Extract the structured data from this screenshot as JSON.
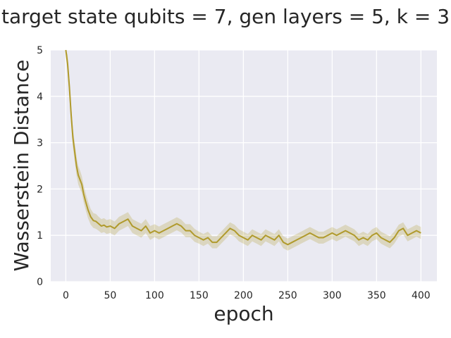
{
  "chart_data": {
    "type": "line",
    "title": "target state qubits = 7, gen layers = 5, k = 3",
    "xlabel": "epoch",
    "ylabel": "Wasserstein Distance",
    "xlim": [
      -17,
      418
    ],
    "ylim": [
      0,
      5
    ],
    "xticks": [
      0,
      50,
      100,
      150,
      200,
      250,
      300,
      350,
      400
    ],
    "yticks": [
      0,
      1,
      2,
      3,
      4,
      5
    ],
    "grid": true,
    "legend": "none",
    "colors": {
      "line": "#b09a2c",
      "band": "#b09a2c",
      "background": "#eaeaf2",
      "grid": "#ffffff"
    },
    "series": [
      {
        "x": [
          0,
          2,
          4,
          6,
          8,
          10,
          12,
          14,
          16,
          18,
          20,
          22,
          25,
          28,
          31,
          34,
          37,
          40,
          43,
          46,
          50,
          55,
          60,
          65,
          70,
          75,
          80,
          85,
          90,
          95,
          100,
          105,
          110,
          115,
          120,
          125,
          130,
          135,
          140,
          145,
          150,
          155,
          160,
          165,
          170,
          175,
          180,
          185,
          190,
          195,
          200,
          205,
          210,
          215,
          220,
          225,
          230,
          235,
          240,
          245,
          250,
          255,
          260,
          265,
          270,
          275,
          280,
          285,
          290,
          295,
          300,
          305,
          310,
          315,
          320,
          325,
          330,
          335,
          340,
          345,
          350,
          355,
          360,
          365,
          370,
          375,
          380,
          385,
          390,
          395,
          400
        ],
        "y": [
          5.0,
          4.7,
          4.2,
          3.6,
          3.1,
          2.8,
          2.5,
          2.3,
          2.2,
          2.1,
          1.9,
          1.75,
          1.55,
          1.4,
          1.32,
          1.3,
          1.25,
          1.2,
          1.22,
          1.18,
          1.2,
          1.15,
          1.25,
          1.3,
          1.35,
          1.2,
          1.15,
          1.1,
          1.2,
          1.05,
          1.1,
          1.05,
          1.1,
          1.15,
          1.2,
          1.25,
          1.2,
          1.1,
          1.1,
          1.0,
          0.95,
          0.9,
          0.95,
          0.85,
          0.85,
          0.95,
          1.05,
          1.15,
          1.1,
          1.0,
          0.95,
          0.9,
          1.0,
          0.95,
          0.9,
          1.0,
          0.95,
          0.9,
          1.0,
          0.85,
          0.8,
          0.85,
          0.9,
          0.95,
          1.0,
          1.05,
          1.0,
          0.95,
          0.95,
          1.0,
          1.05,
          1.0,
          1.05,
          1.1,
          1.05,
          1.0,
          0.9,
          0.95,
          0.9,
          1.0,
          1.05,
          0.95,
          0.9,
          0.85,
          0.95,
          1.1,
          1.15,
          1.0,
          1.05,
          1.1,
          1.05
        ],
        "band_width": [
          0.15,
          0.2,
          0.2,
          0.2,
          0.2,
          0.2,
          0.2,
          0.2,
          0.2,
          0.18,
          0.18,
          0.18,
          0.18,
          0.17,
          0.16,
          0.16,
          0.15,
          0.15,
          0.15,
          0.15,
          0.15,
          0.15,
          0.15,
          0.15,
          0.15,
          0.15,
          0.15,
          0.15,
          0.15,
          0.15,
          0.14,
          0.14,
          0.14,
          0.14,
          0.14,
          0.14,
          0.14,
          0.14,
          0.14,
          0.14,
          0.13,
          0.13,
          0.13,
          0.13,
          0.13,
          0.13,
          0.13,
          0.13,
          0.13,
          0.13,
          0.13,
          0.13,
          0.13,
          0.13,
          0.13,
          0.13,
          0.13,
          0.13,
          0.13,
          0.13,
          0.13,
          0.13,
          0.13,
          0.13,
          0.13,
          0.13,
          0.13,
          0.13,
          0.13,
          0.13,
          0.13,
          0.13,
          0.13,
          0.13,
          0.13,
          0.13,
          0.13,
          0.13,
          0.13,
          0.13,
          0.13,
          0.13,
          0.13,
          0.13,
          0.13,
          0.13,
          0.13,
          0.13,
          0.13,
          0.13,
          0.13
        ]
      }
    ]
  }
}
